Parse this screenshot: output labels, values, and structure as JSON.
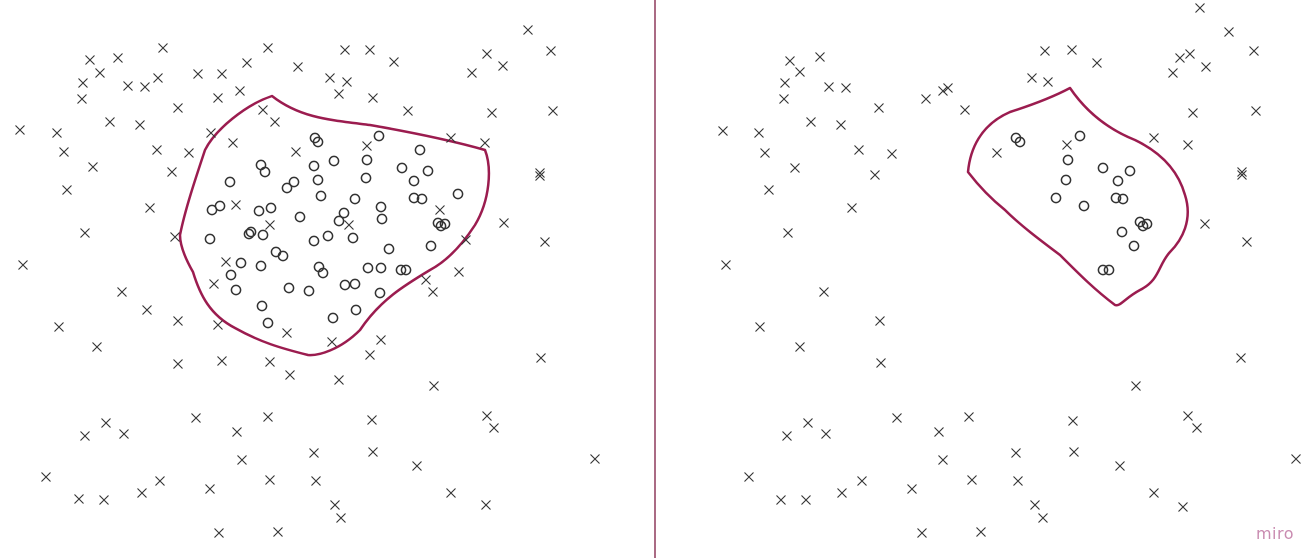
{
  "watermark": "miro",
  "colors": {
    "background": "#ffffff",
    "divider": "#8e3a5c",
    "boundary": "#9b1c4f",
    "marks": "#333333",
    "watermark": "#c98bb0"
  },
  "icons": {
    "cross": "x-mark-icon",
    "circle": "circle-mark-icon"
  }
}
